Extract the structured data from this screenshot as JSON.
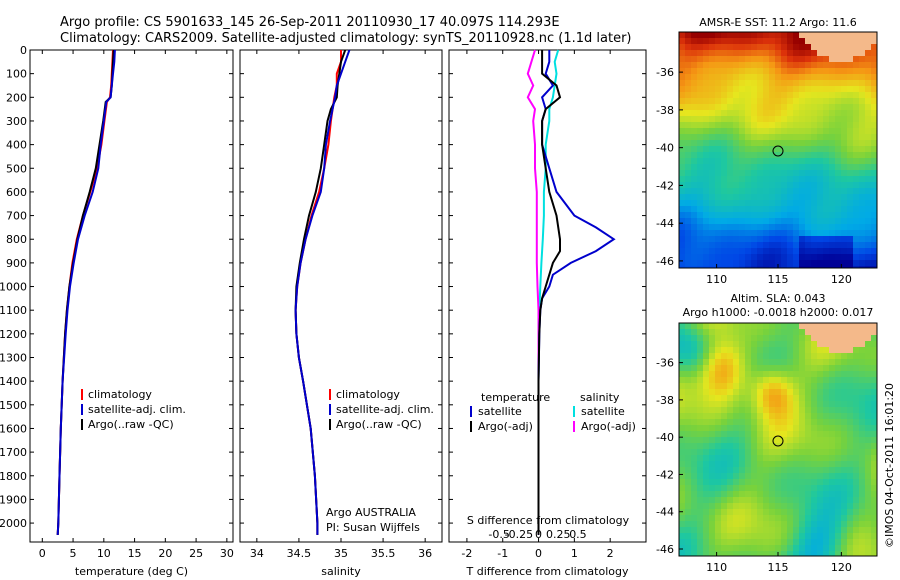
{
  "header": {
    "line1": "Argo profile: CS 5901633_145 26-Sep-2011 20110930_17 40.097S 114.293E",
    "line2": "Climatology: CARS2009. Satellite-adjusted climatology: synTS_20110928.nc (1.1d later)"
  },
  "sst_map": {
    "title": "AMSR-E SST: 11.2 Argo: 11.6",
    "xticks": [
      "110",
      "115",
      "120"
    ],
    "yticks": [
      "-36",
      "-38",
      "-40",
      "-42",
      "-44",
      "-46"
    ]
  },
  "sla_map": {
    "title1": "Altim. SLA: 0.043",
    "title2": "Argo h1000: -0.0018 h2000: 0.017",
    "xticks": [
      "110",
      "115",
      "120"
    ],
    "yticks": [
      "-36",
      "-38",
      "-40",
      "-42",
      "-44",
      "-46"
    ]
  },
  "credit": "©IMOS 04-Oct-2011 16:01:20",
  "colors": {
    "climatology": "#ff0000",
    "satellite": "#0000cc",
    "argo": "#000000",
    "salinity_satellite": "#00e0e0",
    "salinity_argo": "#ff00ff"
  },
  "chart_data": [
    {
      "type": "line",
      "xlabel": "temperature (deg C)",
      "ylabel": "",
      "xlim": [
        -2,
        31
      ],
      "ylim": [
        2080,
        0
      ],
      "xticks": [
        "0",
        "5",
        "10",
        "15",
        "20",
        "25",
        "30"
      ],
      "depth_ticks": [
        "0",
        "100",
        "200",
        "300",
        "400",
        "500",
        "600",
        "700",
        "800",
        "900",
        "1000",
        "1100",
        "1200",
        "1300",
        "1400",
        "1500",
        "1600",
        "1700",
        "1800",
        "1900",
        "2000"
      ],
      "legend": [
        "climatology",
        "satellite-adj. clim.",
        "Argo(..raw -QC)"
      ],
      "series": [
        {
          "name": "climatology",
          "depth": [
            0,
            50,
            100,
            150,
            200,
            220,
            300,
            400,
            500,
            600,
            700,
            800,
            900,
            1000,
            1100,
            1200,
            1400,
            1600,
            1800,
            2000,
            2050
          ],
          "values": [
            11.5,
            11.4,
            11.3,
            11.2,
            11.0,
            10.5,
            10.1,
            9.6,
            8.9,
            7.8,
            6.6,
            5.6,
            4.9,
            4.4,
            4.0,
            3.7,
            3.3,
            3.0,
            2.8,
            2.6,
            2.5
          ]
        },
        {
          "name": "satellite-adj. clim.",
          "depth": [
            0,
            50,
            100,
            150,
            200,
            220,
            300,
            400,
            500,
            600,
            700,
            800,
            900,
            1000,
            1100,
            1200,
            1400,
            1600,
            1800,
            2000,
            2050
          ],
          "values": [
            11.8,
            11.7,
            11.5,
            11.3,
            11.1,
            10.4,
            10.0,
            9.5,
            9.1,
            8.2,
            6.9,
            5.8,
            5.1,
            4.5,
            4.1,
            3.8,
            3.3,
            3.0,
            2.8,
            2.6,
            2.5
          ]
        },
        {
          "name": "Argo(..raw -QC)",
          "depth": [
            0,
            50,
            100,
            150,
            200,
            220,
            300,
            400,
            500,
            600,
            700,
            800,
            900,
            1000,
            1100,
            1200,
            1400,
            1600,
            1800,
            2000,
            2050
          ],
          "values": [
            11.6,
            11.5,
            11.4,
            11.3,
            11.1,
            10.3,
            9.9,
            9.3,
            8.7,
            7.7,
            6.6,
            5.7,
            5.0,
            4.4,
            4.0,
            3.7,
            3.3,
            3.0,
            2.8,
            2.6,
            2.5
          ]
        }
      ]
    },
    {
      "type": "line",
      "xlabel": "salinity",
      "ylabel": "",
      "xlim": [
        33.8,
        36.2
      ],
      "ylim": [
        2080,
        0
      ],
      "xticks": [
        "34",
        "34.5",
        "35",
        "35.5",
        "36"
      ],
      "legend": [
        "climatology",
        "satellite-adj. clim.",
        "Argo(..raw -QC)"
      ],
      "annotation": [
        "Argo AUSTRALIA",
        "PI: Susan Wijffels"
      ],
      "series": [
        {
          "name": "climatology",
          "depth": [
            0,
            50,
            100,
            150,
            200,
            250,
            300,
            400,
            500,
            600,
            700,
            800,
            900,
            1000,
            1100,
            1200,
            1300,
            1400,
            1600,
            1800,
            2000,
            2050
          ],
          "values": [
            35.0,
            35.0,
            34.95,
            34.95,
            34.92,
            34.9,
            34.88,
            34.85,
            34.8,
            34.74,
            34.65,
            34.58,
            34.52,
            34.48,
            34.46,
            34.47,
            34.5,
            34.55,
            34.64,
            34.69,
            34.72,
            34.72
          ]
        },
        {
          "name": "satellite-adj. clim.",
          "depth": [
            0,
            50,
            100,
            150,
            200,
            250,
            300,
            400,
            500,
            600,
            700,
            800,
            900,
            1000,
            1100,
            1200,
            1300,
            1400,
            1600,
            1800,
            2000,
            2050
          ],
          "values": [
            35.1,
            35.05,
            35.0,
            34.95,
            34.93,
            34.9,
            34.87,
            34.82,
            34.8,
            34.76,
            34.66,
            34.58,
            34.52,
            34.48,
            34.46,
            34.47,
            34.5,
            34.55,
            34.64,
            34.69,
            34.72,
            34.72
          ]
        },
        {
          "name": "Argo(..raw -QC)",
          "depth": [
            0,
            50,
            100,
            150,
            200,
            250,
            300,
            400,
            500,
            600,
            700,
            800,
            900,
            1000,
            1100,
            1200,
            1300,
            1400,
            1600,
            1800,
            2000,
            2050
          ],
          "values": [
            35.05,
            35.0,
            34.98,
            34.96,
            34.95,
            34.88,
            34.84,
            34.8,
            34.76,
            34.7,
            34.62,
            34.56,
            34.51,
            34.47,
            34.46,
            34.47,
            34.5,
            34.55,
            34.64,
            34.69,
            34.72,
            34.72
          ]
        }
      ]
    },
    {
      "type": "line",
      "xlabel": "T difference from climatology",
      "xlabel_top": "S difference from climatology",
      "ylabel": "",
      "xlim": [
        -2.5,
        3
      ],
      "ylim": [
        2080,
        0
      ],
      "xticks": [
        "-2",
        "-1",
        "0",
        "1",
        "2"
      ],
      "xticks_top": [
        "-0.5",
        "-0.25",
        "0",
        "0.25",
        "0.5"
      ],
      "legend_headers": [
        "temperature",
        "salinity"
      ],
      "legend": [
        "satellite",
        "Argo(-adj)",
        "satellite",
        "Argo(-adj)"
      ],
      "series": [
        {
          "name": "satellite",
          "depth": [
            0,
            50,
            100,
            150,
            200,
            250,
            300,
            400,
            500,
            600,
            700,
            750,
            800,
            850,
            900,
            950,
            1000,
            1050,
            1100,
            1200,
            1400,
            1600,
            1800,
            2000,
            2050
          ],
          "values": [
            0.3,
            0.3,
            0.2,
            0.4,
            0.1,
            0.2,
            0.1,
            0.1,
            0.3,
            0.5,
            1.0,
            1.6,
            2.1,
            1.6,
            0.9,
            0.4,
            0.3,
            0.1,
            0.05,
            0.02,
            0.0,
            0.0,
            0.0,
            0.0,
            0.0
          ]
        },
        {
          "name": "Argo(-adj)",
          "depth": [
            0,
            50,
            100,
            150,
            200,
            250,
            300,
            400,
            500,
            600,
            700,
            800,
            850,
            900,
            950,
            1000,
            1050,
            1100,
            1200,
            1400,
            1600,
            1800,
            2000,
            2050
          ],
          "values": [
            0.1,
            0.1,
            0.1,
            0.5,
            0.6,
            0.2,
            0.1,
            0.1,
            0.2,
            0.3,
            0.5,
            0.6,
            0.6,
            0.4,
            0.3,
            0.2,
            0.1,
            0.05,
            0.02,
            0.0,
            0.0,
            0.0,
            0.0,
            0.0
          ]
        },
        {
          "name": "satellite",
          "depth": [
            0,
            50,
            100,
            150,
            200,
            250,
            300,
            400,
            500,
            600,
            700,
            800,
            900,
            1000,
            1100,
            1200,
            1400,
            1600,
            1800,
            2000,
            2050
          ],
          "values": [
            0.55,
            0.45,
            0.5,
            0.45,
            0.4,
            0.3,
            0.3,
            0.2,
            0.2,
            0.15,
            0.15,
            0.12,
            0.08,
            0.05,
            0.02,
            0.01,
            0.0,
            0.0,
            0.0,
            0.0,
            0.0
          ]
        },
        {
          "name": "Argo(-adj)",
          "depth": [
            0,
            50,
            100,
            150,
            200,
            250,
            300,
            400,
            500,
            600,
            700,
            800,
            900,
            1000,
            1100,
            1200,
            1400,
            1600,
            1800,
            2000,
            2050
          ],
          "values": [
            -0.1,
            -0.2,
            -0.3,
            -0.15,
            -0.3,
            -0.1,
            -0.15,
            -0.1,
            -0.1,
            -0.05,
            -0.05,
            -0.05,
            -0.05,
            -0.03,
            0.0,
            0.0,
            0.0,
            0.0,
            0.0,
            0.0,
            0.0
          ]
        }
      ]
    }
  ]
}
